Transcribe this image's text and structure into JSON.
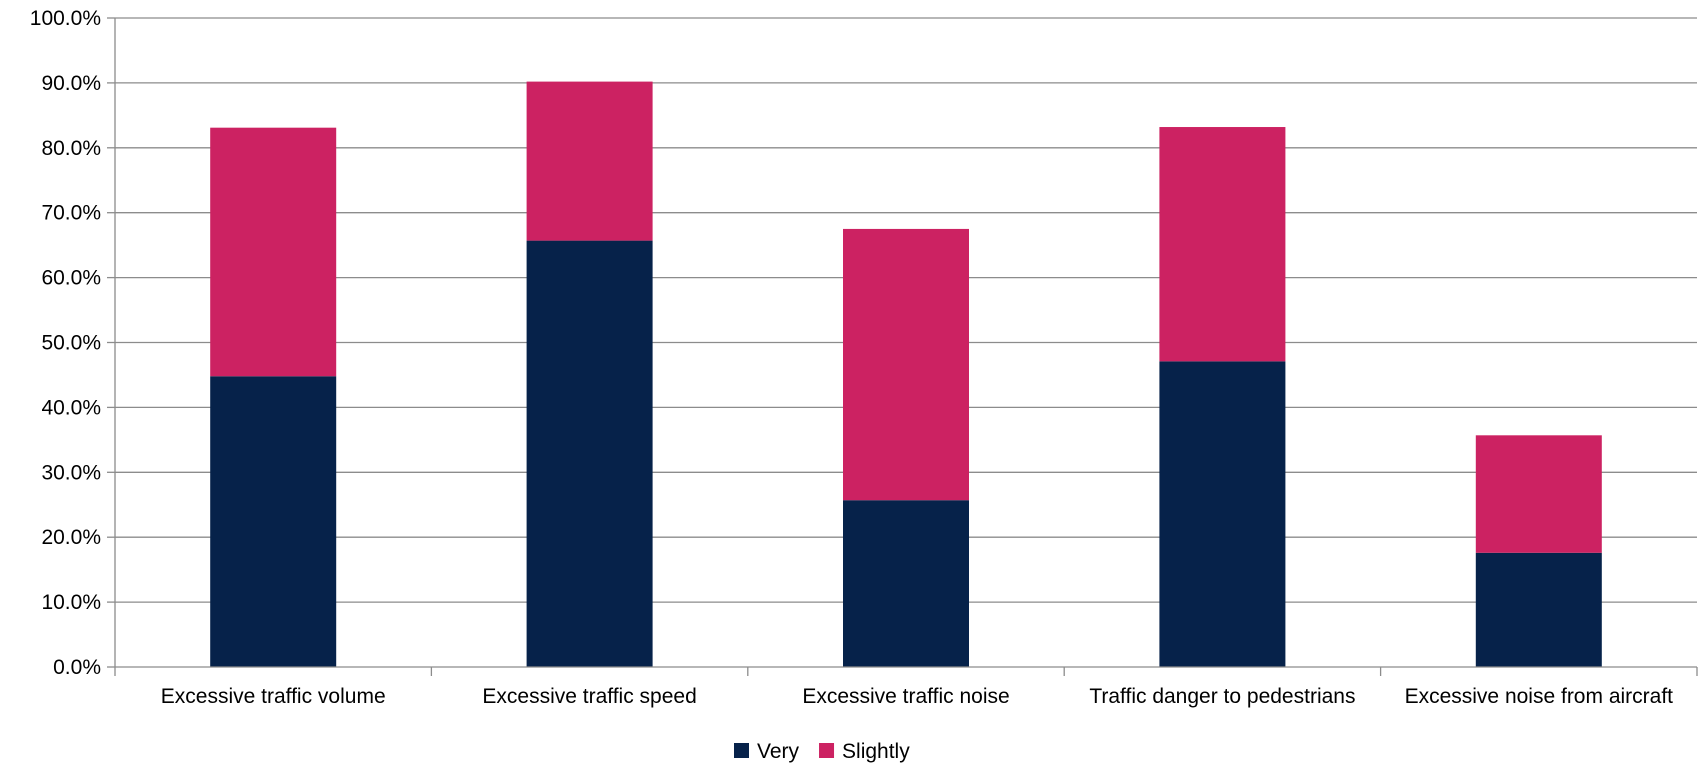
{
  "chart_data": {
    "type": "bar",
    "stacked": true,
    "title": "",
    "xlabel": "",
    "ylabel": "",
    "categories": [
      "Excessive traffic volume",
      "Excessive traffic speed",
      "Excessive traffic noise",
      "Traffic danger to pedestrians",
      "Excessive noise from aircraft"
    ],
    "series": [
      {
        "name": "Very",
        "color": "#06224a",
        "values": [
          44.8,
          65.7,
          25.7,
          47.1,
          17.6
        ]
      },
      {
        "name": "Slightly",
        "color": "#cc2262",
        "values": [
          38.3,
          24.5,
          41.8,
          36.1,
          18.1
        ]
      }
    ],
    "ylim": [
      0,
      100
    ],
    "yticks": [
      0,
      10,
      20,
      30,
      40,
      50,
      60,
      70,
      80,
      90,
      100
    ],
    "ytick_format": "percent_1dp",
    "grid": true,
    "legend": {
      "position": "bottom",
      "entries": [
        "Very",
        "Slightly"
      ]
    }
  }
}
